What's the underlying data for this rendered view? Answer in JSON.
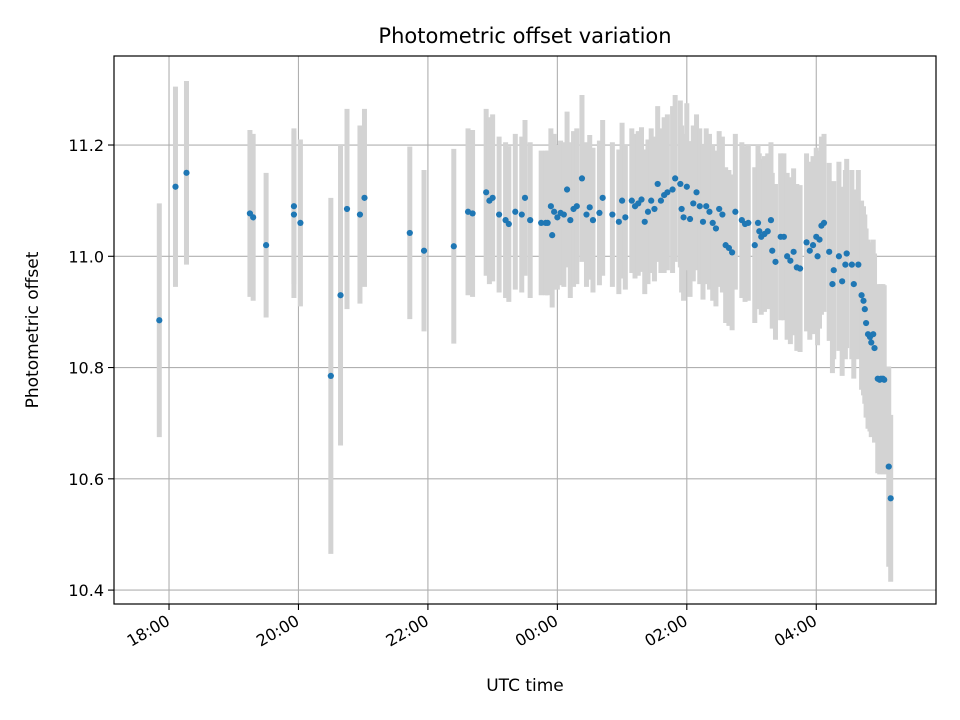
{
  "chart_data": {
    "type": "scatter",
    "title": "Photometric offset variation",
    "xlabel": "UTC time",
    "ylabel": "Photometric offset",
    "x_unit": "hours since 00:00 UTC",
    "xlim": [
      -6.85,
      5.85
    ],
    "ylim": [
      10.375,
      11.36
    ],
    "x_ticks": [
      {
        "value": -6,
        "label": "18:00"
      },
      {
        "value": -4,
        "label": "20:00"
      },
      {
        "value": -2,
        "label": "22:00"
      },
      {
        "value": 0,
        "label": "00:00"
      },
      {
        "value": 2,
        "label": "02:00"
      },
      {
        "value": 4,
        "label": "04:00"
      }
    ],
    "y_ticks": [
      {
        "value": 10.4,
        "label": "10.4"
      },
      {
        "value": 10.6,
        "label": "10.6"
      },
      {
        "value": 10.8,
        "label": "10.8"
      },
      {
        "value": 11.0,
        "label": "11.0"
      },
      {
        "value": 11.2,
        "label": "11.2"
      }
    ],
    "grid": true,
    "colors": {
      "marker": "#1f77b4",
      "errorbar": "#d3d3d3",
      "grid": "#b0b0b0"
    },
    "points": [
      [
        -6.15,
        10.885,
        0.21
      ],
      [
        -5.9,
        11.125,
        0.18
      ],
      [
        -5.73,
        11.15,
        0.165
      ],
      [
        -4.75,
        11.077,
        0.15
      ],
      [
        -4.7,
        11.07,
        0.15
      ],
      [
        -4.5,
        11.02,
        0.13
      ],
      [
        -4.07,
        11.09,
        0.14
      ],
      [
        -4.07,
        11.075,
        0.15
      ],
      [
        -3.97,
        11.06,
        0.15
      ],
      [
        -3.5,
        10.785,
        0.32
      ],
      [
        -3.35,
        10.93,
        0.27
      ],
      [
        -3.25,
        11.085,
        0.18
      ],
      [
        -3.05,
        11.075,
        0.16
      ],
      [
        -2.98,
        11.105,
        0.16
      ],
      [
        -2.28,
        11.042,
        0.155
      ],
      [
        -2.06,
        11.01,
        0.145
      ],
      [
        -1.6,
        11.018,
        0.175
      ],
      [
        -1.38,
        11.08,
        0.15
      ],
      [
        -1.31,
        11.077,
        0.15
      ],
      [
        -1.1,
        11.115,
        0.15
      ],
      [
        -1.05,
        11.1,
        0.15
      ],
      [
        -1.0,
        11.105,
        0.15
      ],
      [
        -0.9,
        11.075,
        0.14
      ],
      [
        -0.8,
        11.065,
        0.14
      ],
      [
        -0.75,
        11.058,
        0.14
      ],
      [
        -0.65,
        11.08,
        0.14
      ],
      [
        -0.55,
        11.075,
        0.14
      ],
      [
        -0.5,
        11.105,
        0.14
      ],
      [
        -0.42,
        11.065,
        0.14
      ],
      [
        -0.25,
        11.06,
        0.13
      ],
      [
        -0.18,
        11.06,
        0.13
      ],
      [
        -0.15,
        11.06,
        0.13
      ],
      [
        -0.1,
        11.09,
        0.14
      ],
      [
        -0.05,
        11.08,
        0.14
      ],
      [
        -0.08,
        11.038,
        0.13
      ],
      [
        0.0,
        11.07,
        0.13
      ],
      [
        0.05,
        11.078,
        0.13
      ],
      [
        0.1,
        11.075,
        0.13
      ],
      [
        0.15,
        11.12,
        0.14
      ],
      [
        0.2,
        11.065,
        0.14
      ],
      [
        0.25,
        11.085,
        0.14
      ],
      [
        0.3,
        11.09,
        0.14
      ],
      [
        0.38,
        11.14,
        0.15
      ],
      [
        0.45,
        11.075,
        0.13
      ],
      [
        0.5,
        11.088,
        0.13
      ],
      [
        0.55,
        11.065,
        0.13
      ],
      [
        0.65,
        11.078,
        0.13
      ],
      [
        0.7,
        11.105,
        0.14
      ],
      [
        0.85,
        11.075,
        0.13
      ],
      [
        0.95,
        11.062,
        0.13
      ],
      [
        1.0,
        11.1,
        0.14
      ],
      [
        1.05,
        11.07,
        0.13
      ],
      [
        1.15,
        11.1,
        0.13
      ],
      [
        1.2,
        11.09,
        0.13
      ],
      [
        1.25,
        11.095,
        0.13
      ],
      [
        1.3,
        11.102,
        0.13
      ],
      [
        1.35,
        11.062,
        0.13
      ],
      [
        1.4,
        11.08,
        0.13
      ],
      [
        1.45,
        11.1,
        0.13
      ],
      [
        1.5,
        11.085,
        0.13
      ],
      [
        1.55,
        11.13,
        0.14
      ],
      [
        1.6,
        11.1,
        0.13
      ],
      [
        1.65,
        11.11,
        0.14
      ],
      [
        1.7,
        11.115,
        0.14
      ],
      [
        1.78,
        11.12,
        0.15
      ],
      [
        1.82,
        11.14,
        0.15
      ],
      [
        1.9,
        11.13,
        0.15
      ],
      [
        1.92,
        11.085,
        0.15
      ],
      [
        1.95,
        11.07,
        0.15
      ],
      [
        2.0,
        11.125,
        0.15
      ],
      [
        2.05,
        11.067,
        0.14
      ],
      [
        2.1,
        11.095,
        0.14
      ],
      [
        2.15,
        11.115,
        0.14
      ],
      [
        2.2,
        11.09,
        0.14
      ],
      [
        2.25,
        11.062,
        0.14
      ],
      [
        2.3,
        11.09,
        0.14
      ],
      [
        2.35,
        11.08,
        0.14
      ],
      [
        2.4,
        11.06,
        0.14
      ],
      [
        2.45,
        11.05,
        0.14
      ],
      [
        2.5,
        11.085,
        0.14
      ],
      [
        2.55,
        11.075,
        0.14
      ],
      [
        2.6,
        11.02,
        0.14
      ],
      [
        2.65,
        11.015,
        0.14
      ],
      [
        2.7,
        11.007,
        0.14
      ],
      [
        2.75,
        11.08,
        0.14
      ],
      [
        2.85,
        11.065,
        0.14
      ],
      [
        2.9,
        11.058,
        0.14
      ],
      [
        2.95,
        11.06,
        0.14
      ],
      [
        3.05,
        11.02,
        0.14
      ],
      [
        3.1,
        11.06,
        0.14
      ],
      [
        3.12,
        11.045,
        0.14
      ],
      [
        3.15,
        11.035,
        0.14
      ],
      [
        3.2,
        11.04,
        0.14
      ],
      [
        3.25,
        11.045,
        0.14
      ],
      [
        3.3,
        11.065,
        0.14
      ],
      [
        3.32,
        11.01,
        0.14
      ],
      [
        3.37,
        10.99,
        0.14
      ],
      [
        3.45,
        11.035,
        0.15
      ],
      [
        3.5,
        11.035,
        0.15
      ],
      [
        3.55,
        11.0,
        0.15
      ],
      [
        3.6,
        10.992,
        0.15
      ],
      [
        3.65,
        11.008,
        0.15
      ],
      [
        3.7,
        10.98,
        0.15
      ],
      [
        3.75,
        10.978,
        0.15
      ],
      [
        3.85,
        11.025,
        0.16
      ],
      [
        3.9,
        11.01,
        0.16
      ],
      [
        3.95,
        11.02,
        0.16
      ],
      [
        4.0,
        11.035,
        0.16
      ],
      [
        4.02,
        11.0,
        0.16
      ],
      [
        4.05,
        11.03,
        0.16
      ],
      [
        4.08,
        11.055,
        0.16
      ],
      [
        4.12,
        11.06,
        0.16
      ],
      [
        4.2,
        11.008,
        0.16
      ],
      [
        4.25,
        10.95,
        0.16
      ],
      [
        4.27,
        10.975,
        0.16
      ],
      [
        4.35,
        11.0,
        0.17
      ],
      [
        4.4,
        10.955,
        0.17
      ],
      [
        4.45,
        10.985,
        0.17
      ],
      [
        4.47,
        11.005,
        0.17
      ],
      [
        4.55,
        10.985,
        0.17
      ],
      [
        4.58,
        10.95,
        0.17
      ],
      [
        4.65,
        10.985,
        0.17
      ],
      [
        4.7,
        10.93,
        0.17
      ],
      [
        4.73,
        10.92,
        0.17
      ],
      [
        4.75,
        10.905,
        0.17
      ],
      [
        4.77,
        10.88,
        0.17
      ],
      [
        4.8,
        10.86,
        0.17
      ],
      [
        4.83,
        10.855,
        0.17
      ],
      [
        4.85,
        10.845,
        0.17
      ],
      [
        4.88,
        10.86,
        0.17
      ],
      [
        4.9,
        10.835,
        0.17
      ],
      [
        4.95,
        10.78,
        0.17
      ],
      [
        4.98,
        10.778,
        0.17
      ],
      [
        5.0,
        10.78,
        0.17
      ],
      [
        5.03,
        10.78,
        0.17
      ],
      [
        5.05,
        10.778,
        0.17
      ],
      [
        5.12,
        10.622,
        0.18
      ],
      [
        5.15,
        10.565,
        0.15
      ]
    ]
  }
}
